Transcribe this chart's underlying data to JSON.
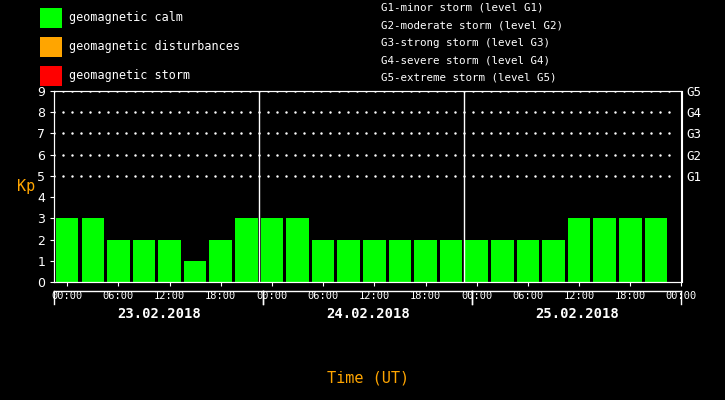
{
  "bg_color": "#000000",
  "bar_color_calm": "#00ff00",
  "bar_color_disturb": "#ffa500",
  "bar_color_storm": "#ff0000",
  "orange_color": "#ffa500",
  "text_color": "#ffffff",
  "ylabel": "Kp",
  "xlabel": "Time (UT)",
  "ylim": [
    0,
    9
  ],
  "yticks": [
    0,
    1,
    2,
    3,
    4,
    5,
    6,
    7,
    8,
    9
  ],
  "right_labels": [
    "G1",
    "G2",
    "G3",
    "G4",
    "G5"
  ],
  "right_label_yvals": [
    5,
    6,
    7,
    8,
    9
  ],
  "days": [
    "23.02.2018",
    "24.02.2018",
    "25.02.2018"
  ],
  "kp_values": [
    [
      3,
      3,
      2,
      2,
      2,
      1,
      2,
      3
    ],
    [
      3,
      3,
      2,
      2,
      2,
      2,
      2,
      2
    ],
    [
      2,
      2,
      2,
      2,
      3,
      3,
      3,
      3
    ]
  ],
  "legend_items": [
    {
      "label": "geomagnetic calm",
      "color": "#00ff00"
    },
    {
      "label": "geomagnetic disturbances",
      "color": "#ffa500"
    },
    {
      "label": "geomagnetic storm",
      "color": "#ff0000"
    }
  ],
  "legend2_lines": [
    "G1-minor storm (level G1)",
    "G2-moderate storm (level G2)",
    "G3-strong storm (level G3)",
    "G4-severe storm (level G4)",
    "G5-extreme storm (level G5)"
  ],
  "dot_grid_yvals": [
    5,
    6,
    7,
    8,
    9
  ],
  "calm_max": 3,
  "disturb_min": 4,
  "storm_min": 5
}
